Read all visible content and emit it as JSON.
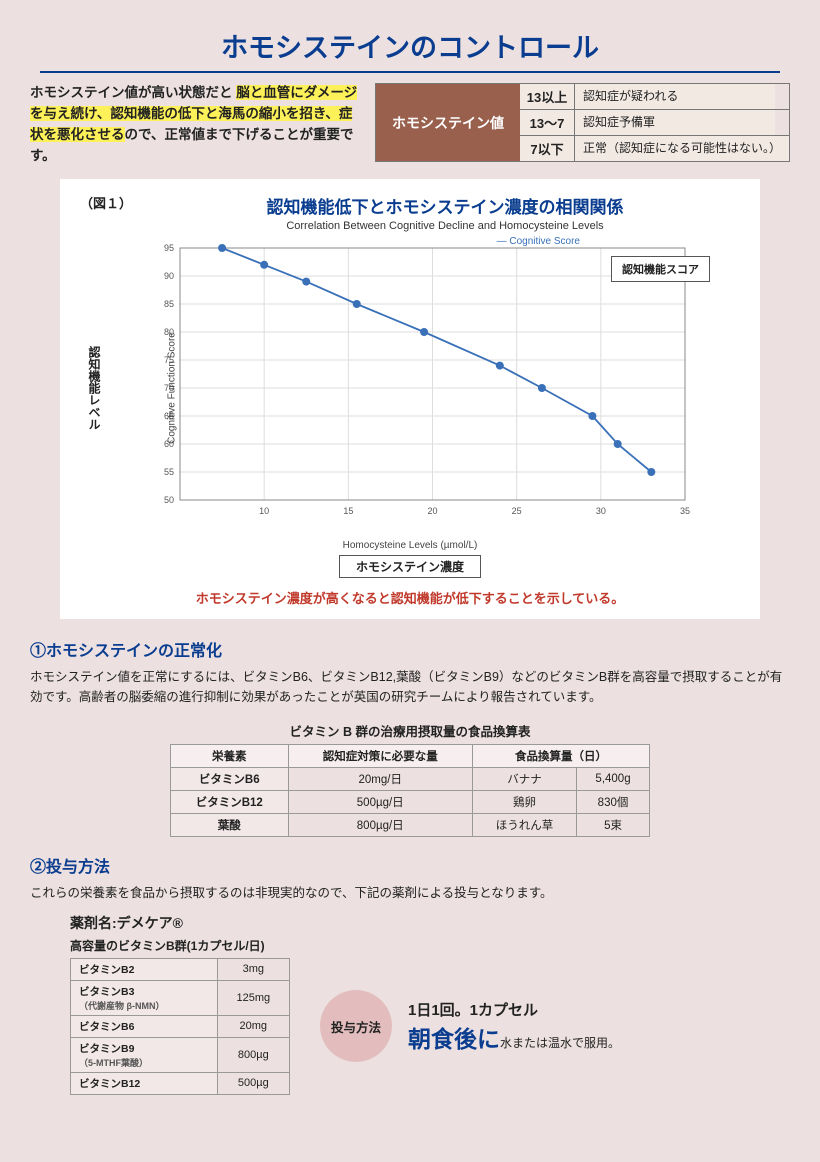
{
  "title": "ホモシステインのコントロール",
  "intro": {
    "pre": "ホモシステイン値が高い状態だと ",
    "highlight": "脳と血管にダメージを与え続け、認知機能の低下と海馬の縮小を招き、症状を悪化させる",
    "post": "ので、正常値まで下げることが重要です。"
  },
  "homoTable": {
    "label": "ホモシステイン値",
    "rows": [
      {
        "val": "13以上",
        "desc": "認知症が疑われる"
      },
      {
        "val": "13〜7",
        "desc": "認知症予備軍"
      },
      {
        "val": "7以下",
        "desc": "正常（認知症になる可能性はない。）"
      }
    ]
  },
  "chart": {
    "fig_label": "（図１）",
    "title_jp": "認知機能低下とホモシステイン濃度の相関関係",
    "subtitle_en": "Correlation Between Cognitive Decline and Homocysteine Levels",
    "ylabel_jp": "認知機能レベル",
    "ylabel_en": "Cognitive Function Score",
    "xlabel_en": "Homocysteine Levels (µmol/L)",
    "xlabel_jp": "ホモシステイン濃度",
    "legend_jp": "認知機能スコア",
    "legend_en": "— Cognitive Score",
    "note": "ホモシステイン濃度が高くなると認知機能が低下することを示している。",
    "type": "line",
    "line_color": "#3970b8",
    "marker": "circle",
    "marker_size": 4,
    "line_width": 1.8,
    "background": "#ffffff",
    "grid_color": "#dddddd",
    "xlim": [
      5,
      35
    ],
    "xtick_step": 5,
    "ylim": [
      50,
      95
    ],
    "ytick_step": 5,
    "points": [
      {
        "x": 7.5,
        "y": 95
      },
      {
        "x": 10,
        "y": 92
      },
      {
        "x": 12.5,
        "y": 89
      },
      {
        "x": 15.5,
        "y": 85
      },
      {
        "x": 19.5,
        "y": 80
      },
      {
        "x": 24,
        "y": 74
      },
      {
        "x": 26.5,
        "y": 70
      },
      {
        "x": 29.5,
        "y": 65
      },
      {
        "x": 31,
        "y": 60
      },
      {
        "x": 33,
        "y": 55
      }
    ]
  },
  "section1": {
    "heading": "①ホモシステインの正常化",
    "body": "ホモシステイン値を正常にするには、ビタミンB6、ビタミンB12,葉酸（ビタミンB9）などのビタミンB群を高容量で摂取することが有効です。高齢者の脳委縮の進行抑制に効果があったことが英国の研究チームにより報告されています。",
    "conv_title": "ビタミン B 群の治療用摂取量の食品換算表",
    "conv_headers": [
      "栄養素",
      "認知症対策に必要な量",
      "食品換算量（日）"
    ],
    "conv_rows": [
      {
        "nutrient": "ビタミンB6",
        "amount": "20mg/日",
        "food": "バナナ",
        "qty": "5,400g"
      },
      {
        "nutrient": "ビタミンB12",
        "amount": "500µg/日",
        "food": "鶏卵",
        "qty": "830個"
      },
      {
        "nutrient": "葉酸",
        "amount": "800µg/日",
        "food": "ほうれん草",
        "qty": "5束"
      }
    ]
  },
  "section2": {
    "heading": "②投与方法",
    "body": "これらの栄養素を食品から摂取するのは非現実的なので、下記の薬剤による投与となります。",
    "drug_name": "薬剤名:デメケア®",
    "cap_title": "高容量のビタミンB群(1カプセル/日)",
    "cap_rows": [
      {
        "name": "ビタミンB2",
        "sub": "",
        "amt": "3mg"
      },
      {
        "name": "ビタミンB3",
        "sub": "（代謝産物 β-NMN）",
        "amt": "125mg"
      },
      {
        "name": "ビタミンB6",
        "sub": "",
        "amt": "20mg"
      },
      {
        "name": "ビタミンB9",
        "sub": "（5-MTHF葉酸）",
        "amt": "800µg"
      },
      {
        "name": "ビタミンB12",
        "sub": "",
        "amt": "500µg"
      }
    ],
    "dose_badge": "投与方法",
    "dose_line1": "1日1回。1カプセル",
    "dose_big": "朝食後に",
    "dose_small": "水または温水で服用。"
  }
}
